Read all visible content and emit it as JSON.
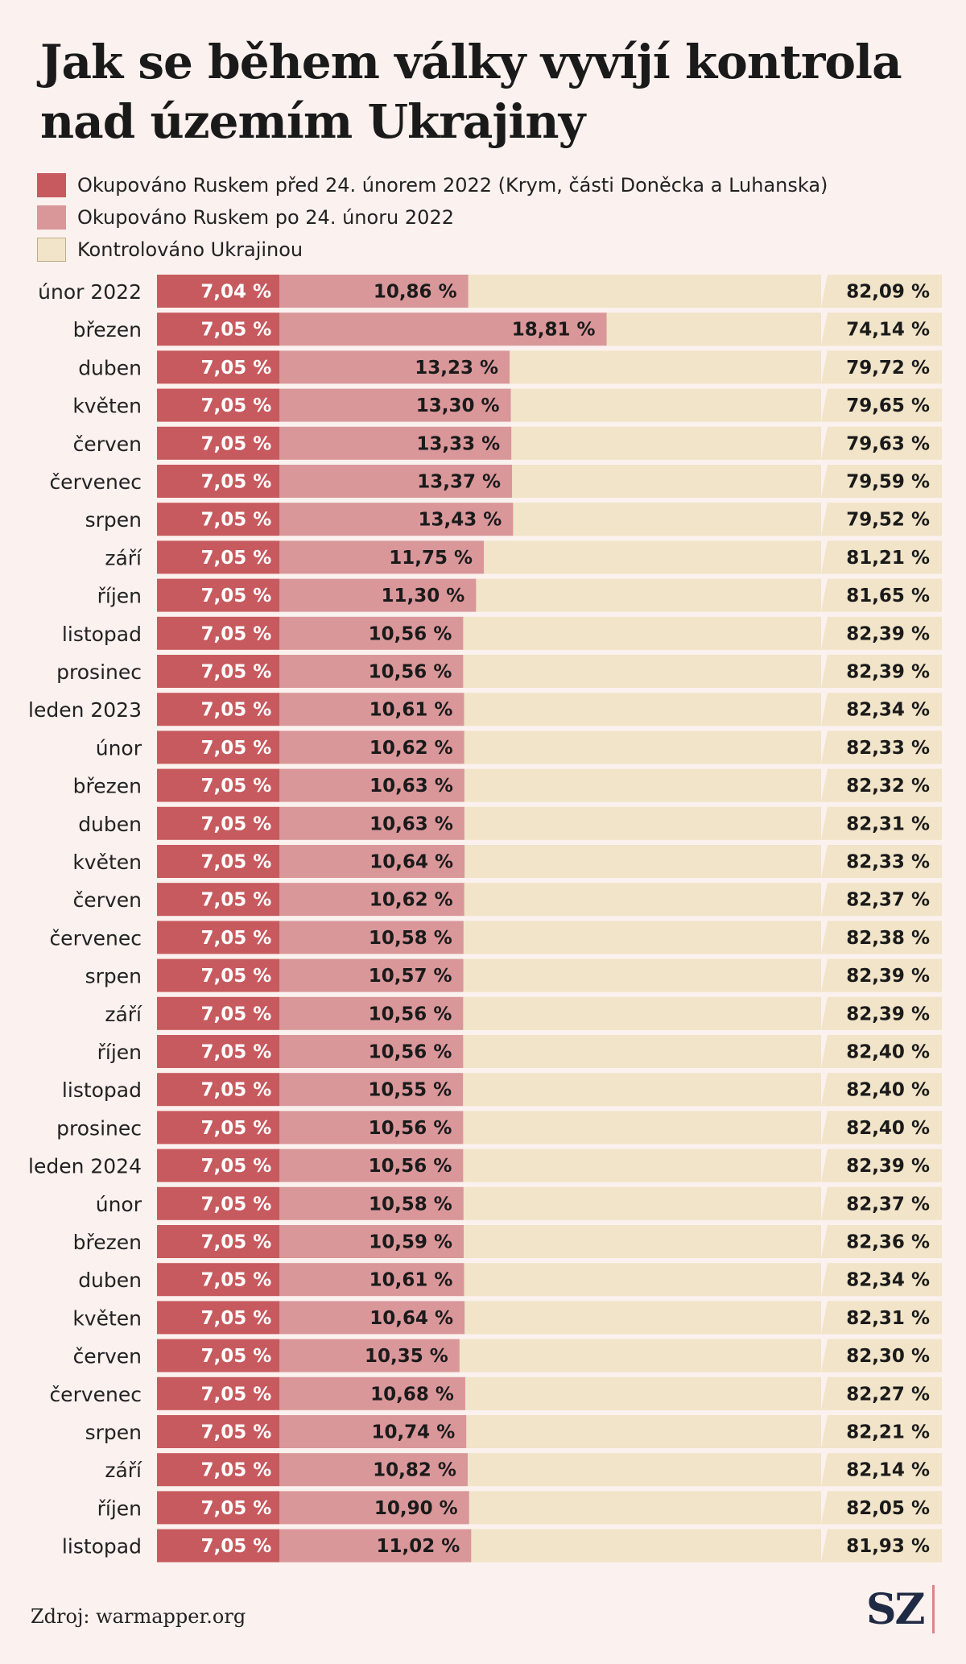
{
  "title": "Jak se během války vyvíjí kontrola nad územím Ukrajiny",
  "legend": [
    {
      "label": "Okupováno Ruskem před 24. únorem 2022 (Krym, části Doněcka a Luhanska)",
      "color": "#c75a5e"
    },
    {
      "label": "Okupováno Ruskem po 24. únoru 2022",
      "color": "#d9979a"
    },
    {
      "label": "Kontrolováno Ukrajinou",
      "color": "#f1e4c8"
    }
  ],
  "chart_data": {
    "type": "bar",
    "stacked": true,
    "orientation": "horizontal",
    "categories": [
      "únor 2022",
      "březen",
      "duben",
      "květen",
      "červen",
      "červenec",
      "srpen",
      "září",
      "říjen",
      "listopad",
      "prosinec",
      "leden 2023",
      "únor",
      "březen",
      "duben",
      "květen",
      "červen",
      "červenec",
      "srpen",
      "září",
      "říjen",
      "listopad",
      "prosinec",
      "leden 2024",
      "únor",
      "březen",
      "duben",
      "květen",
      "červen",
      "červenec",
      "srpen",
      "září",
      "říjen",
      "listopad"
    ],
    "series": [
      {
        "name": "Okupováno Ruskem před 24. únorem 2022 (Krym, části Doněcka a Luhanska)",
        "values": [
          7.04,
          7.05,
          7.05,
          7.05,
          7.05,
          7.05,
          7.05,
          7.05,
          7.05,
          7.05,
          7.05,
          7.05,
          7.05,
          7.05,
          7.05,
          7.05,
          7.05,
          7.05,
          7.05,
          7.05,
          7.05,
          7.05,
          7.05,
          7.05,
          7.05,
          7.05,
          7.05,
          7.05,
          7.05,
          7.05,
          7.05,
          7.05,
          7.05,
          7.05
        ],
        "labels": [
          "7,04 %",
          "7,05 %",
          "7,05 %",
          "7,05 %",
          "7,05 %",
          "7,05 %",
          "7,05 %",
          "7,05 %",
          "7,05 %",
          "7,05 %",
          "7,05 %",
          "7,05 %",
          "7,05 %",
          "7,05 %",
          "7,05 %",
          "7,05 %",
          "7,05 %",
          "7,05 %",
          "7,05 %",
          "7,05 %",
          "7,05 %",
          "7,05 %",
          "7,05 %",
          "7,05 %",
          "7,05 %",
          "7,05 %",
          "7,05 %",
          "7,05 %",
          "7,05 %",
          "7,05 %",
          "7,05 %",
          "7,05 %",
          "7,05 %",
          "7,05 %"
        ]
      },
      {
        "name": "Okupováno Ruskem po 24. únoru 2022",
        "values": [
          10.86,
          18.81,
          13.23,
          13.3,
          13.33,
          13.37,
          13.43,
          11.75,
          11.3,
          10.56,
          10.56,
          10.61,
          10.62,
          10.63,
          10.63,
          10.64,
          10.62,
          10.58,
          10.57,
          10.56,
          10.56,
          10.55,
          10.56,
          10.56,
          10.58,
          10.59,
          10.61,
          10.64,
          10.35,
          10.68,
          10.74,
          10.82,
          10.9,
          11.02
        ],
        "labels": [
          "10,86 %",
          "18,81 %",
          "13,23 %",
          "13,30 %",
          "13,33 %",
          "13,37 %",
          "13,43 %",
          "11,75 %",
          "11,30 %",
          "10,56 %",
          "10,56 %",
          "10,61 %",
          "10,62 %",
          "10,63 %",
          "10,63 %",
          "10,64 %",
          "10,62 %",
          "10,58 %",
          "10,57 %",
          "10,56 %",
          "10,56 %",
          "10,55 %",
          "10,56 %",
          "10,56 %",
          "10,58 %",
          "10,59 %",
          "10,61 %",
          "10,64 %",
          "10,35 %",
          "10,68 %",
          "10,74 %",
          "10,82 %",
          "10,90 %",
          "11,02 %"
        ]
      },
      {
        "name": "Kontrolováno Ukrajinou",
        "values": [
          82.09,
          74.14,
          79.72,
          79.65,
          79.63,
          79.59,
          79.52,
          81.21,
          81.65,
          82.39,
          82.39,
          82.34,
          82.33,
          82.32,
          82.31,
          82.33,
          82.37,
          82.38,
          82.39,
          82.39,
          82.4,
          82.4,
          82.4,
          82.39,
          82.37,
          82.36,
          82.34,
          82.31,
          82.3,
          82.27,
          82.21,
          82.14,
          82.05,
          81.93
        ],
        "labels": [
          "82,09 %",
          "74,14 %",
          "79,72 %",
          "79,65 %",
          "79,63 %",
          "79,59 %",
          "79,52 %",
          "81,21 %",
          "81,65 %",
          "82,39 %",
          "82,39 %",
          "82,34 %",
          "82,33 %",
          "82,32 %",
          "82,31 %",
          "82,33 %",
          "82,37 %",
          "82,38 %",
          "82,39 %",
          "82,39 %",
          "82,40 %",
          "82,40 %",
          "82,40 %",
          "82,39 %",
          "82,37 %",
          "82,36 %",
          "82,34 %",
          "82,31 %",
          "82,30 %",
          "82,27 %",
          "82,21 %",
          "82,14 %",
          "82,05 %",
          "81,93 %"
        ]
      }
    ],
    "axis_break": true
  },
  "source": "Zdroj: warmapper.org",
  "logo": "SZ",
  "colors": {
    "pre2022": "#c75a5e",
    "post2022": "#d9979a",
    "ukraine": "#f1e4c8",
    "background": "#fbf1ee"
  }
}
